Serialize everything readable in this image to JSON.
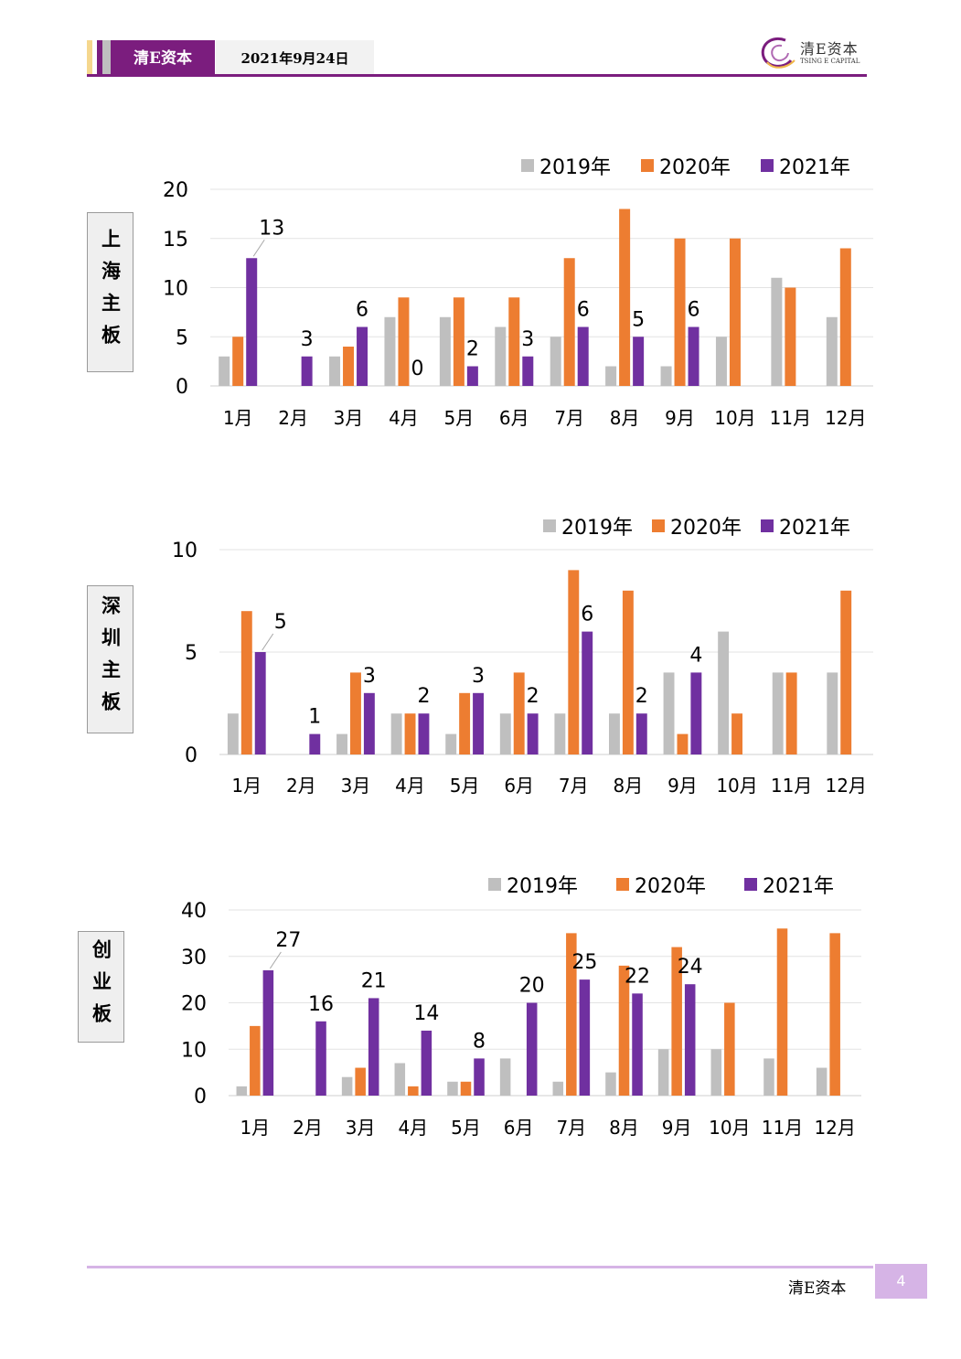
{
  "header": {
    "brand": "清E资本",
    "date": "2021年9月24日",
    "logo_cn": "清E资本",
    "logo_en": "TSING E CAPITAL",
    "accent": "#7b1d7e"
  },
  "footer": {
    "brand": "清E资本",
    "page": "4"
  },
  "colors": {
    "2019年": "#bfbfbf",
    "2020年": "#ed7d31",
    "2021年": "#7030a0"
  },
  "panels": [
    {
      "label": "上海主板"
    },
    {
      "label": "深圳主板"
    },
    {
      "label": "创业板"
    }
  ],
  "chart_data": [
    {
      "type": "bar",
      "categories": [
        "1月",
        "2月",
        "3月",
        "4月",
        "5月",
        "6月",
        "7月",
        "8月",
        "9月",
        "10月",
        "11月",
        "12月"
      ],
      "ylim": [
        0,
        20
      ],
      "yticks": [
        "0",
        "5",
        "10",
        "15",
        "20"
      ],
      "series": [
        {
          "name": "2019年",
          "values": [
            3,
            0,
            3,
            7,
            7,
            6,
            5,
            2,
            2,
            5,
            11,
            7
          ]
        },
        {
          "name": "2020年",
          "values": [
            5,
            0,
            4,
            9,
            9,
            9,
            13,
            18,
            15,
            15,
            10,
            14
          ]
        },
        {
          "name": "2021年",
          "values": [
            13,
            3,
            6,
            0,
            2,
            3,
            6,
            5,
            6,
            null,
            null,
            null
          ],
          "data_labels": [
            "13",
            "3",
            "6",
            "0",
            "2",
            "3",
            "6",
            "5",
            "6",
            "",
            "",
            ""
          ]
        }
      ],
      "legend": "top-right",
      "grid": true
    },
    {
      "type": "bar",
      "categories": [
        "1月",
        "2月",
        "3月",
        "4月",
        "5月",
        "6月",
        "7月",
        "8月",
        "9月",
        "10月",
        "11月",
        "12月"
      ],
      "ylim": [
        0,
        10
      ],
      "yticks": [
        "0",
        "5",
        "10"
      ],
      "series": [
        {
          "name": "2019年",
          "values": [
            2,
            0,
            1,
            2,
            1,
            2,
            2,
            2,
            4,
            6,
            4,
            4
          ]
        },
        {
          "name": "2020年",
          "values": [
            7,
            0,
            4,
            2,
            3,
            4,
            9,
            8,
            1,
            2,
            4,
            8
          ]
        },
        {
          "name": "2021年",
          "values": [
            5,
            1,
            3,
            2,
            3,
            2,
            6,
            2,
            4,
            null,
            null,
            null
          ],
          "data_labels": [
            "5",
            "1",
            "3",
            "2",
            "3",
            "2",
            "6",
            "2",
            "4",
            "",
            "",
            ""
          ]
        }
      ],
      "legend": "top-right",
      "grid": true
    },
    {
      "type": "bar",
      "categories": [
        "1月",
        "2月",
        "3月",
        "4月",
        "5月",
        "6月",
        "7月",
        "8月",
        "9月",
        "10月",
        "11月",
        "12月"
      ],
      "ylim": [
        0,
        40
      ],
      "yticks": [
        "0",
        "10",
        "20",
        "30",
        "40"
      ],
      "series": [
        {
          "name": "2019年",
          "values": [
            2,
            0,
            4,
            7,
            3,
            8,
            3,
            5,
            10,
            10,
            8,
            6
          ]
        },
        {
          "name": "2020年",
          "values": [
            15,
            0,
            6,
            2,
            3,
            0,
            35,
            28,
            32,
            20,
            36,
            35
          ]
        },
        {
          "name": "2021年",
          "values": [
            27,
            16,
            21,
            14,
            8,
            20,
            25,
            22,
            24,
            null,
            null,
            null
          ],
          "data_labels": [
            "27",
            "16",
            "21",
            "14",
            "8",
            "20",
            "25",
            "22",
            "24",
            "",
            "",
            ""
          ]
        }
      ],
      "legend": "top-right",
      "grid": true
    }
  ]
}
